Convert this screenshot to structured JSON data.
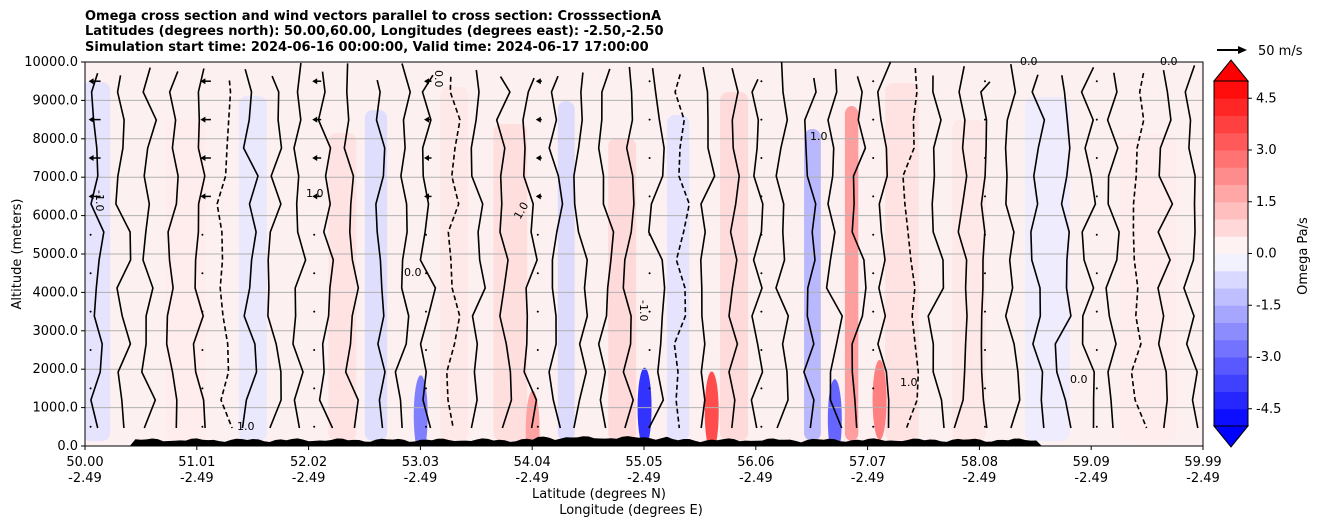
{
  "chart_data": {
    "type": "heatmap",
    "title_lines": [
      "Omega cross section and wind vectors parallel to cross section: CrosssectionA",
      "Latitudes (degrees north): 50.00,60.00, Longitudes (degrees east): -2.50,-2.50",
      "Simulation start time: 2024-06-16 00:00:00, Valid time: 2024-06-17 17:00:00"
    ],
    "ylabel": "Altitude (meters)",
    "xlabel": "Latitude (degrees N)",
    "xlabel2": "Longitude (degrees E)",
    "ylim": [
      0,
      10000
    ],
    "xlim": [
      50.0,
      59.99
    ],
    "y_ticks": [
      "0.0",
      "1000.0",
      "2000.0",
      "3000.0",
      "4000.0",
      "5000.0",
      "6000.0",
      "7000.0",
      "8000.0",
      "9000.0",
      "10000.0"
    ],
    "x_ticks": [
      {
        "lat": "50.00",
        "lon": "-2.49"
      },
      {
        "lat": "51.01",
        "lon": "-2.49"
      },
      {
        "lat": "52.02",
        "lon": "-2.49"
      },
      {
        "lat": "53.03",
        "lon": "-2.49"
      },
      {
        "lat": "54.04",
        "lon": "-2.49"
      },
      {
        "lat": "55.05",
        "lon": "-2.49"
      },
      {
        "lat": "56.06",
        "lon": "-2.49"
      },
      {
        "lat": "57.07",
        "lon": "-2.49"
      },
      {
        "lat": "58.08",
        "lon": "-2.49"
      },
      {
        "lat": "59.09",
        "lon": "-2.49"
      },
      {
        "lat": "59.99",
        "lon": "-2.49"
      }
    ],
    "colorbar": {
      "label": "Omega Pa/s",
      "vmin": -5.0,
      "vmax": 5.0,
      "ticks": [
        "-4.5",
        "-3.0",
        "-1.5",
        "0.0",
        "1.5",
        "3.0",
        "4.5"
      ],
      "tick_values": [
        -4.5,
        -3.0,
        -1.5,
        0.0,
        1.5,
        3.0,
        4.5
      ],
      "levels": 20,
      "neg_color": "#0000ff",
      "pos_color": "#ff0000"
    },
    "wind_key": {
      "label": "50 m/s"
    },
    "contour_labels": [
      "0.0",
      "-1.0",
      "1.0"
    ],
    "bands": [
      {
        "lat": 50.1,
        "w": 0.25,
        "val": -0.6
      },
      {
        "lat": 50.9,
        "w": 0.35,
        "val": 0.4
      },
      {
        "lat": 51.5,
        "w": 0.25,
        "val": -0.5
      },
      {
        "lat": 52.3,
        "w": 0.25,
        "val": 0.6
      },
      {
        "lat": 52.6,
        "w": 0.2,
        "val": -0.7
      },
      {
        "lat": 53.3,
        "w": 0.25,
        "val": 0.5
      },
      {
        "lat": 53.8,
        "w": 0.3,
        "val": 0.7
      },
      {
        "lat": 54.3,
        "w": 0.15,
        "val": -0.8
      },
      {
        "lat": 54.8,
        "w": 0.25,
        "val": 0.8
      },
      {
        "lat": 55.3,
        "w": 0.2,
        "val": -0.6
      },
      {
        "lat": 55.8,
        "w": 0.25,
        "val": 0.8
      },
      {
        "lat": 56.5,
        "w": 0.15,
        "val": -1.6
      },
      {
        "lat": 56.85,
        "w": 0.12,
        "val": 2.2
      },
      {
        "lat": 57.3,
        "w": 0.3,
        "val": 0.6
      },
      {
        "lat": 57.9,
        "w": 0.3,
        "val": 0.5
      },
      {
        "lat": 58.6,
        "w": 0.4,
        "val": -0.4
      },
      {
        "lat": 59.5,
        "w": 0.5,
        "val": 0.4
      }
    ],
    "blobs": [
      {
        "lat": 53.0,
        "alt": 800,
        "val": -2.5
      },
      {
        "lat": 55.0,
        "alt": 1000,
        "val": -4.0
      },
      {
        "lat": 55.6,
        "alt": 900,
        "val": 3.5
      },
      {
        "lat": 56.7,
        "alt": 700,
        "val": -3.0
      },
      {
        "lat": 57.1,
        "alt": 1200,
        "val": 2.5
      },
      {
        "lat": 54.0,
        "alt": 400,
        "val": 1.8
      }
    ]
  }
}
